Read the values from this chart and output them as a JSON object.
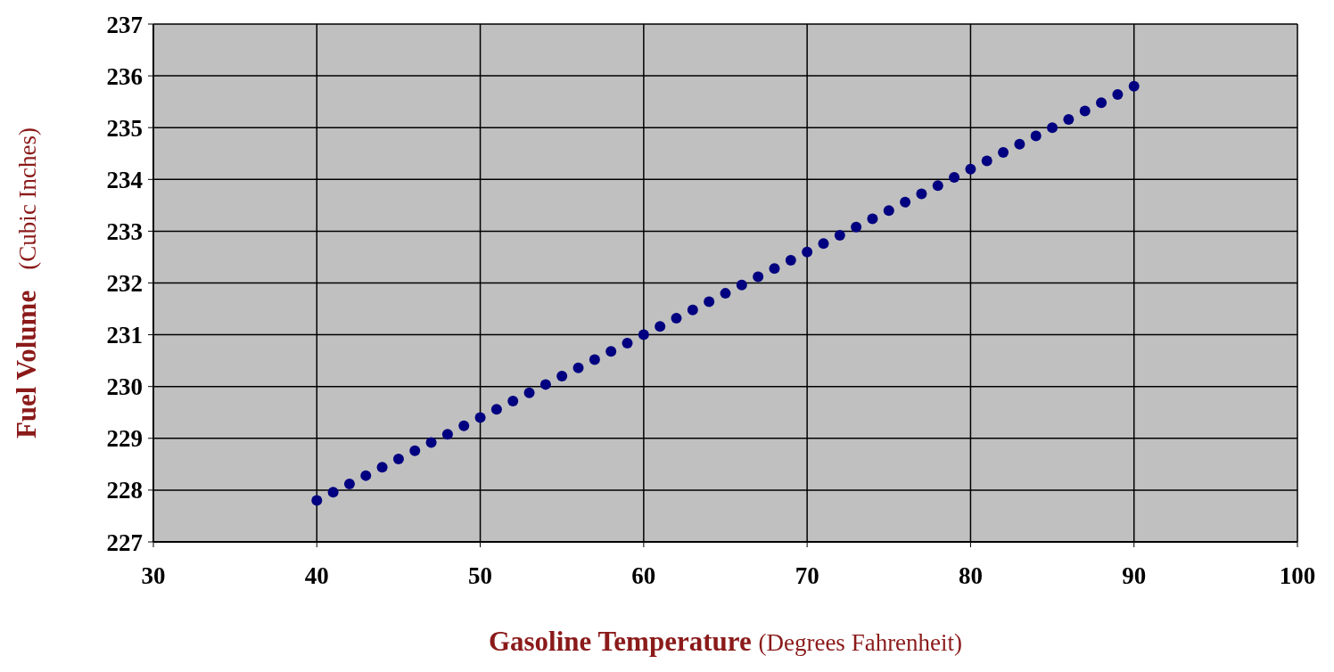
{
  "chart_data": {
    "type": "scatter",
    "xlabel": "Gasoline Temperature (Degrees Fahrenheit)",
    "ylabel": "Fuel Volume   (Cubic Inches)",
    "x": [
      40,
      41,
      42,
      43,
      44,
      45,
      46,
      47,
      48,
      49,
      50,
      51,
      52,
      53,
      54,
      55,
      56,
      57,
      58,
      59,
      60,
      61,
      62,
      63,
      64,
      65,
      66,
      67,
      68,
      69,
      70,
      71,
      72,
      73,
      74,
      75,
      76,
      77,
      78,
      79,
      80,
      81,
      82,
      83,
      84,
      85,
      86,
      87,
      88,
      89,
      90
    ],
    "series": [
      {
        "color": "#000080",
        "values": [
          227.8,
          227.96,
          228.12,
          228.28,
          228.44,
          228.6,
          228.76,
          228.92,
          229.08,
          229.24,
          229.4,
          229.56,
          229.72,
          229.88,
          230.04,
          230.2,
          230.36,
          230.52,
          230.68,
          230.84,
          231.0,
          231.16,
          231.32,
          231.48,
          231.64,
          231.8,
          231.96,
          232.12,
          232.28,
          232.44,
          232.6,
          232.76,
          232.92,
          233.08,
          233.24,
          233.4,
          233.56,
          233.72,
          233.88,
          234.04,
          234.2,
          234.36,
          234.52,
          234.68,
          234.84,
          235.0,
          235.16,
          235.32,
          235.48,
          235.64,
          235.8
        ]
      }
    ],
    "xlim": [
      30,
      100
    ],
    "xticks": [
      30,
      40,
      50,
      60,
      70,
      80,
      90,
      100
    ],
    "ylim": [
      227,
      237
    ],
    "yticks": [
      227,
      228,
      229,
      230,
      231,
      232,
      233,
      234,
      235,
      236,
      237
    ],
    "grid": true,
    "marker": "circle",
    "legend": false
  }
}
